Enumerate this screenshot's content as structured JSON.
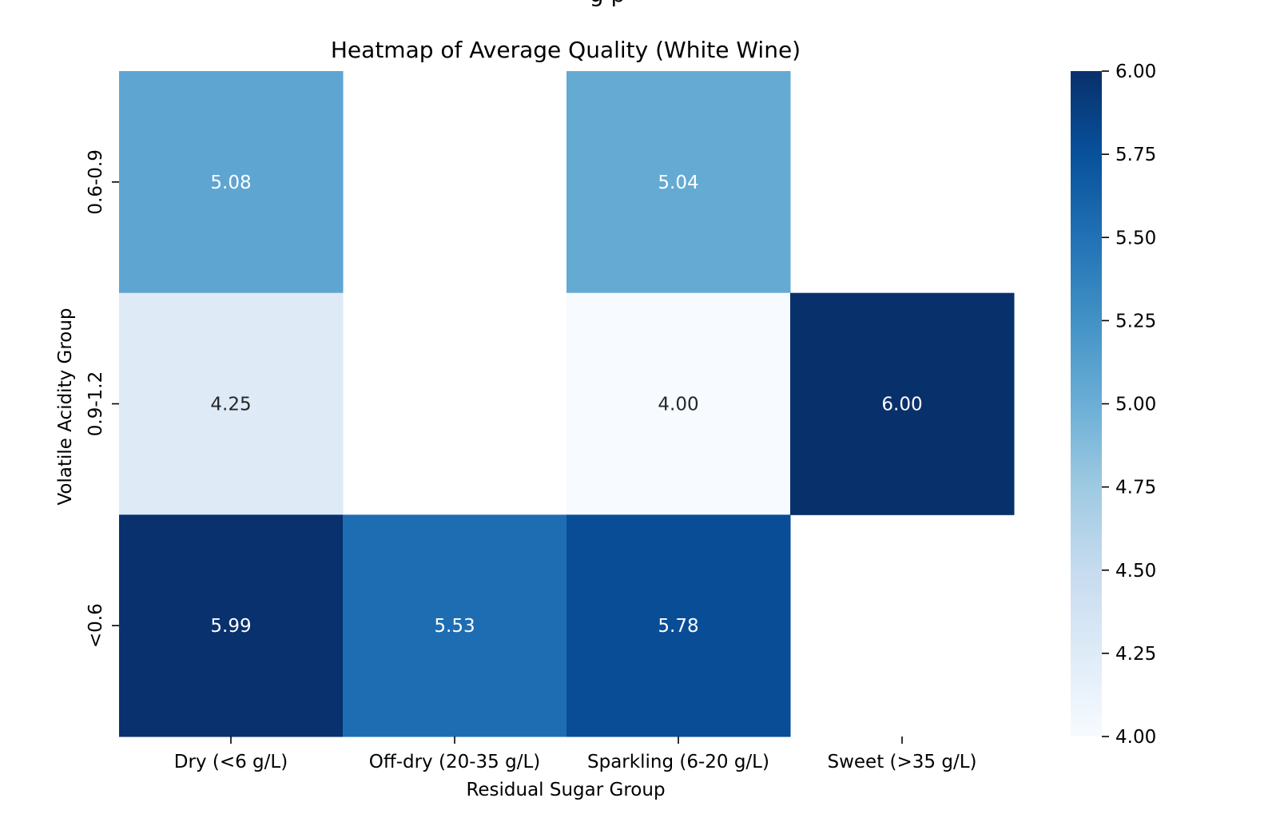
{
  "chart_data": {
    "type": "heatmap",
    "title": "Heatmap of Average Quality (White Wine)",
    "top_partial_text": "g   p",
    "xlabel": "Residual Sugar Group",
    "ylabel": "Volatile Acidity Group",
    "x_categories": [
      "Dry (<6 g/L)",
      "Off-dry (20-35 g/L)",
      "Sparkling (6-20 g/L)",
      "Sweet (>35 g/L)"
    ],
    "y_categories": [
      "0.6-0.9",
      "0.9-1.2",
      "<0.6"
    ],
    "values": [
      [
        5.08,
        null,
        5.04,
        null
      ],
      [
        4.25,
        null,
        4.0,
        6.0
      ],
      [
        5.99,
        5.53,
        5.78,
        null
      ]
    ],
    "value_format": "2 decimals",
    "colormap": "Blues",
    "colorbar": {
      "min": 4.0,
      "max": 6.0,
      "ticks": [
        "4.00",
        "4.25",
        "4.50",
        "4.75",
        "5.00",
        "5.25",
        "5.50",
        "5.75",
        "6.00"
      ],
      "placement": "right"
    }
  }
}
